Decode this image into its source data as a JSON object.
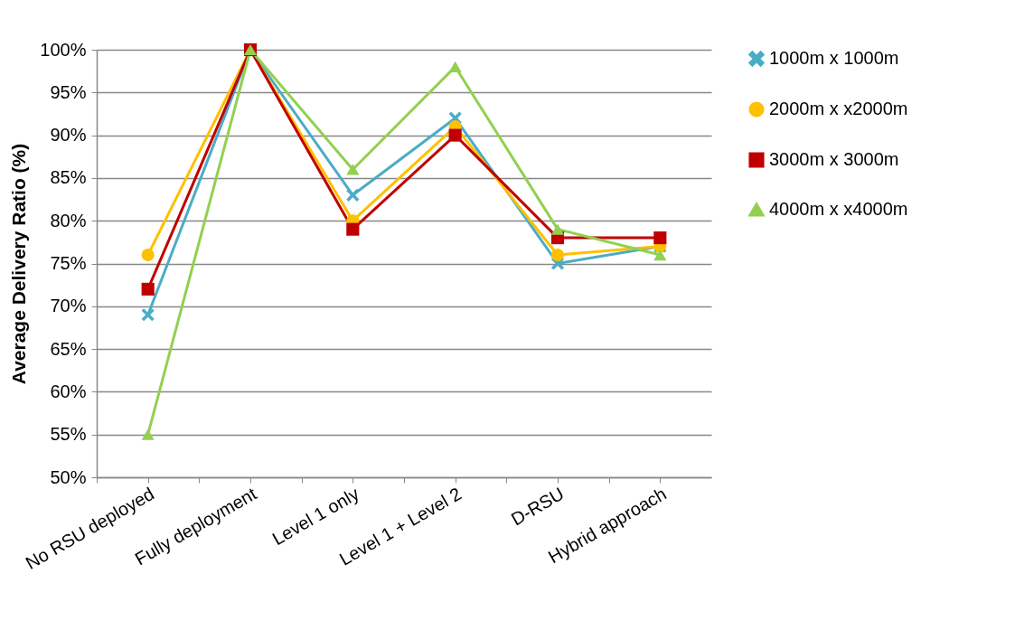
{
  "chart_data": {
    "type": "line",
    "ylabel": "Average Delivery Ratio (%)",
    "categories": [
      "No RSU deployed",
      "Fully deployment",
      "Level 1 only",
      "Level 1 + Level 2",
      "D-RSU",
      "Hybrid approach"
    ],
    "series": [
      {
        "name": "1000m x 1000m",
        "color": "#4bacc6",
        "marker": "cross",
        "values": [
          69,
          100,
          83,
          92,
          75,
          77
        ]
      },
      {
        "name": "2000m x x2000m",
        "color": "#ffc000",
        "marker": "circle",
        "values": [
          76,
          100,
          80,
          91,
          76,
          77
        ]
      },
      {
        "name": "3000m x 3000m",
        "color": "#c00000",
        "marker": "square",
        "values": [
          72,
          100,
          79,
          90,
          78,
          78
        ]
      },
      {
        "name": "4000m x x4000m",
        "color": "#92d050",
        "marker": "triangle",
        "values": [
          55,
          100,
          86,
          98,
          79,
          76
        ]
      }
    ],
    "ylim": [
      50,
      100
    ],
    "yticks": [
      {
        "value": 50,
        "label": "50%"
      },
      {
        "value": 55,
        "label": "55%"
      },
      {
        "value": 60,
        "label": "60%"
      },
      {
        "value": 65,
        "label": "65%"
      },
      {
        "value": 70,
        "label": "70%"
      },
      {
        "value": 75,
        "label": "75%"
      },
      {
        "value": 80,
        "label": "80%"
      },
      {
        "value": 85,
        "label": "85%"
      },
      {
        "value": 90,
        "label": "90%"
      },
      {
        "value": 95,
        "label": "95%"
      },
      {
        "value": 100,
        "label": "100%"
      }
    ],
    "grid": "y",
    "legend": "right",
    "line_style": "solid"
  }
}
